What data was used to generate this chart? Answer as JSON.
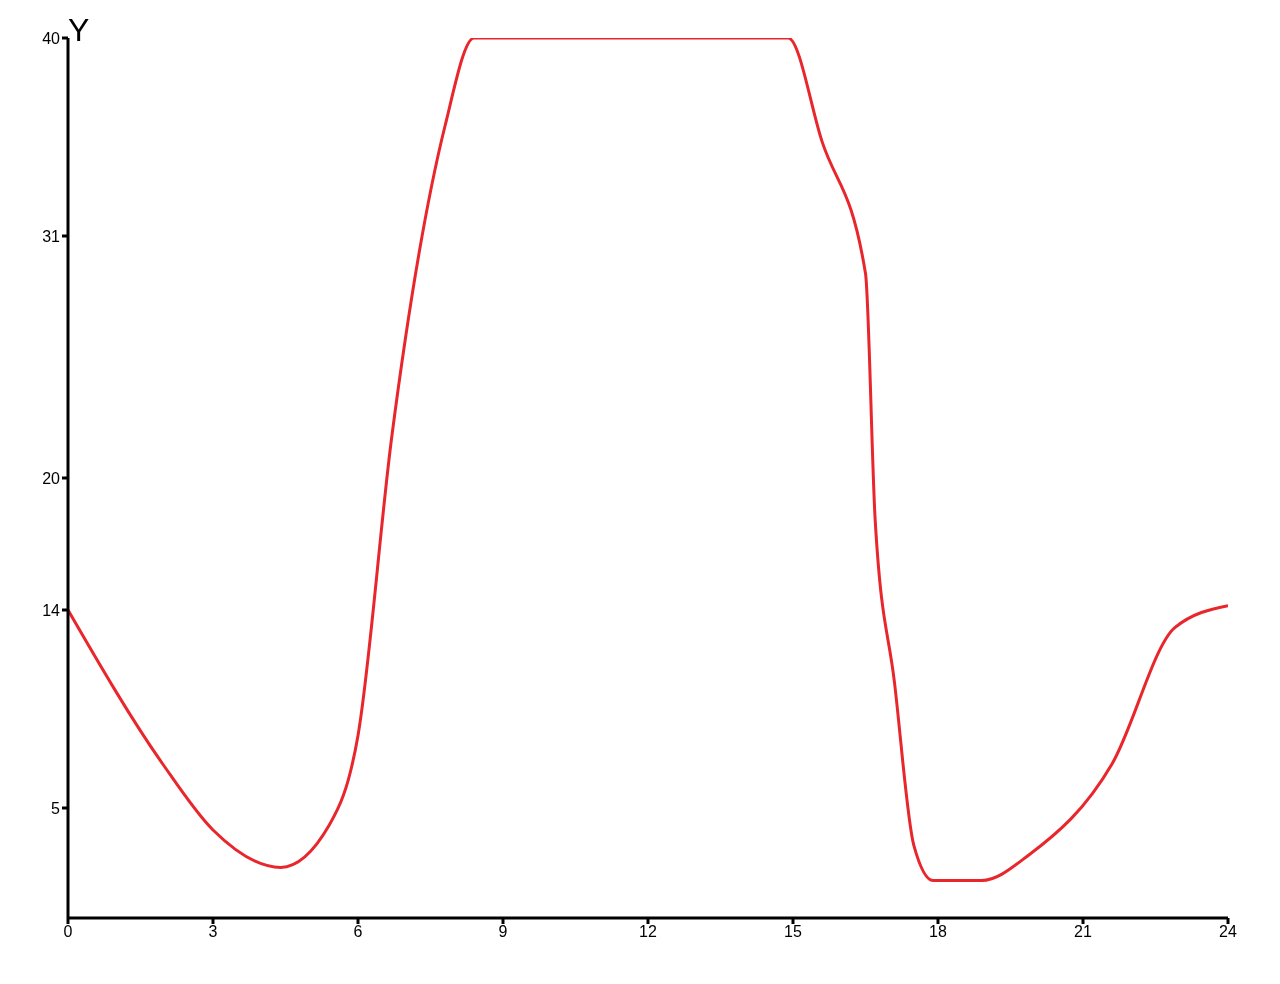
{
  "chart_data": {
    "type": "line",
    "ylabel": "Y",
    "x": [
      0,
      1.96,
      3,
      4.4,
      5.4,
      6,
      6.7,
      7.8,
      8.4,
      12,
      14.9,
      15.6,
      16.5,
      16.7,
      17.1,
      17.5,
      17.9,
      18.9,
      19.9,
      21.6,
      22.9,
      24
    ],
    "series": [
      {
        "color": "#e8262b",
        "values": [
          14,
          7,
          4,
          2.3,
          4.2,
          8.3,
          21.9,
          36,
          40,
          40,
          40,
          35.3,
          29.3,
          18.1,
          10.7,
          3.3,
          1.7,
          1.7,
          2.9,
          7,
          13.2,
          14.2
        ]
      }
    ],
    "xlim": [
      0,
      24
    ],
    "ylim": [
      0,
      40
    ],
    "xticks": [
      0,
      3,
      6,
      9,
      12,
      15,
      18,
      21,
      24
    ],
    "yticks": [
      5,
      14,
      20,
      31,
      40
    ],
    "grid": false,
    "legend": false,
    "marker": "none",
    "line_style": "solid"
  }
}
